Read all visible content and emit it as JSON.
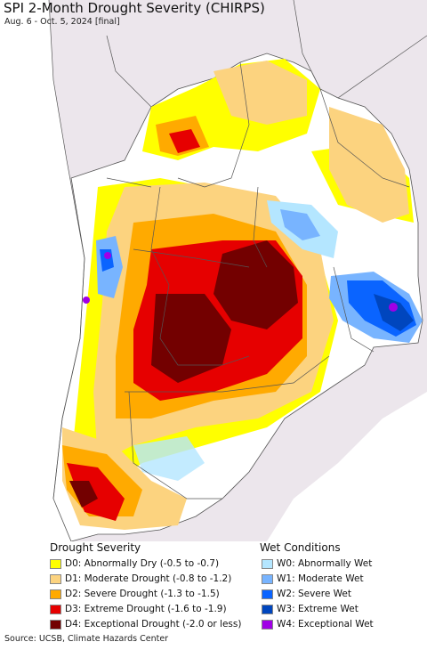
{
  "header": {
    "title": "SPI 2-Month Drought Severity (CHIRPS)",
    "subtitle": "Aug. 6 - Oct. 5, 2024 [final]"
  },
  "legend": {
    "drought_heading": "Drought Severity",
    "wet_heading": "Wet Conditions",
    "drought": [
      {
        "label": "D0: Abnormally Dry (-0.5 to -0.7)",
        "color": "#ffff00"
      },
      {
        "label": "D1: Moderate Drought (-0.8 to -1.2)",
        "color": "#fcd37f"
      },
      {
        "label": "D2: Severe Drought (-1.3 to -1.5)",
        "color": "#ffaa00"
      },
      {
        "label": "D3: Extreme Drought (-1.6 to -1.9)",
        "color": "#e60000"
      },
      {
        "label": "D4: Exceptional Drought (-2.0 or less)",
        "color": "#730000"
      }
    ],
    "wet": [
      {
        "label": "W0: Abnormally Wet",
        "color": "#b4e6ff"
      },
      {
        "label": "W1: Moderate Wet",
        "color": "#78b4ff"
      },
      {
        "label": "W2: Severe Wet",
        "color": "#0a64ff"
      },
      {
        "label": "W3: Extreme Wet",
        "color": "#0046be"
      },
      {
        "label": "W4: Exceptional Wet",
        "color": "#a000e6"
      }
    ]
  },
  "colors": {
    "land": "#ffffff",
    "outside": "#ece6ec",
    "ocean": "#ffffff",
    "border": "#555555"
  },
  "source": "Source: UCSB, Climate Hazards Center"
}
